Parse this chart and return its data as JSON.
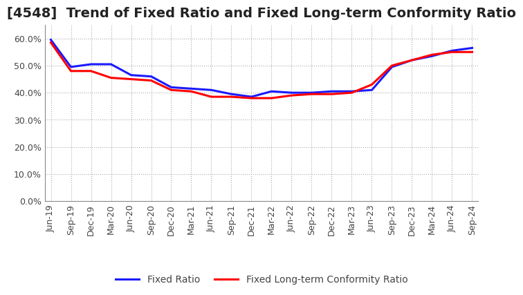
{
  "title": "[4548]  Trend of Fixed Ratio and Fixed Long-term Conformity Ratio",
  "x_labels": [
    "Jun-19",
    "Sep-19",
    "Dec-19",
    "Mar-20",
    "Jun-20",
    "Sep-20",
    "Dec-20",
    "Mar-21",
    "Jun-21",
    "Sep-21",
    "Dec-21",
    "Mar-22",
    "Jun-22",
    "Sep-22",
    "Dec-22",
    "Mar-23",
    "Jun-23",
    "Sep-23",
    "Dec-23",
    "Mar-24",
    "Jun-24",
    "Sep-24"
  ],
  "fixed_ratio": [
    59.5,
    49.5,
    50.5,
    50.5,
    46.5,
    46.0,
    42.0,
    41.5,
    41.0,
    39.5,
    38.5,
    40.5,
    40.0,
    40.0,
    40.5,
    40.5,
    41.0,
    49.5,
    52.0,
    53.5,
    55.5,
    56.5
  ],
  "fixed_lt_ratio": [
    58.5,
    48.0,
    48.0,
    45.5,
    45.0,
    44.5,
    41.0,
    40.5,
    38.5,
    38.5,
    38.0,
    38.0,
    39.0,
    39.5,
    39.5,
    40.0,
    43.0,
    50.0,
    52.0,
    54.0,
    55.0,
    55.0
  ],
  "fixed_ratio_color": "#1a1aff",
  "fixed_lt_ratio_color": "#ff0000",
  "ylim": [
    0.0,
    65.0
  ],
  "yticks": [
    0.0,
    10.0,
    20.0,
    30.0,
    40.0,
    50.0,
    60.0
  ],
  "background_color": "#ffffff",
  "grid_color": "#aaaaaa",
  "title_fontsize": 14,
  "legend_fontsize": 10,
  "tick_fontsize": 9,
  "line_width": 2.2
}
